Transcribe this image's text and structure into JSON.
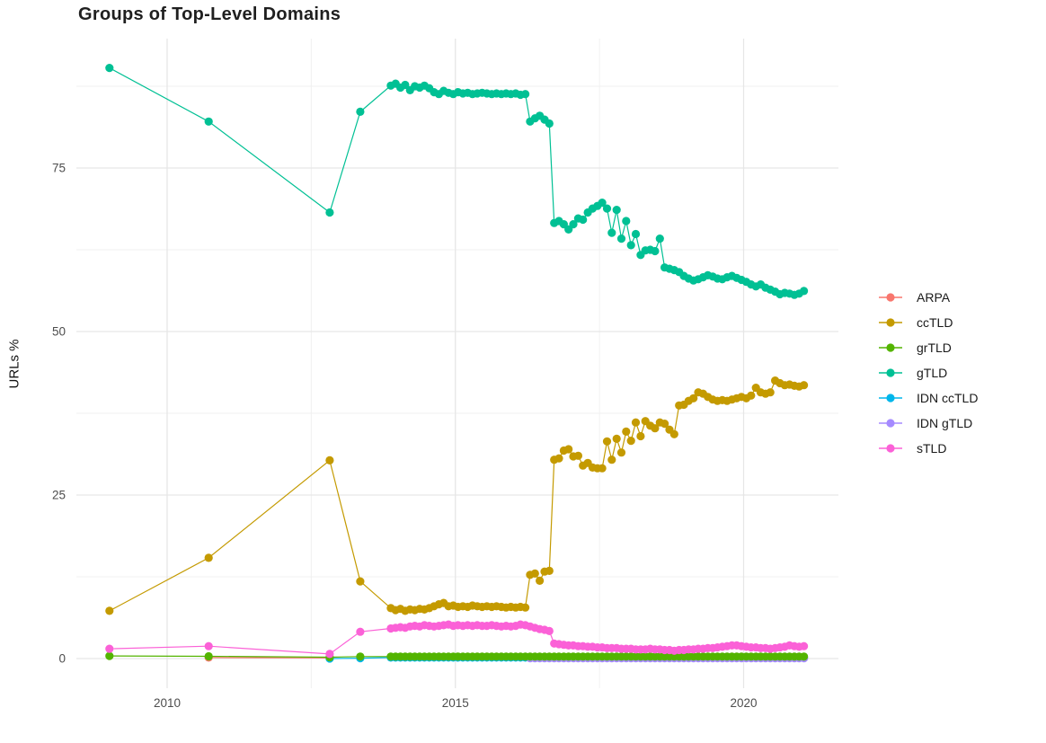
{
  "chart_data": {
    "type": "line",
    "title": "Groups of Top-Level Domains",
    "xlabel": "",
    "ylabel": "URLs %",
    "x_ticks": [
      2010,
      2015,
      2020
    ],
    "x_tick_labels": [
      "2010",
      "2015",
      "2020"
    ],
    "x_minor_ticks": [
      2012.5,
      2017.5
    ],
    "y_ticks": [
      0,
      25,
      50,
      75
    ],
    "y_tick_labels": [
      "0",
      "25",
      "50",
      "75"
    ],
    "y_minor_ticks": [
      12.5,
      37.5,
      62.5,
      87.5
    ],
    "xlim": [
      2008.4,
      2021.65
    ],
    "ylim": [
      -4.5,
      94.8
    ],
    "grid": true,
    "legend_position": "right",
    "point_radius_px": 4.6,
    "colors": {
      "ARPA": "#F8766D",
      "ccTLD": "#C49A00",
      "grTLD": "#53B400",
      "gTLD": "#00C094",
      "IDN ccTLD": "#00B6EB",
      "IDN gTLD": "#A58AFF",
      "sTLD": "#FB61D7"
    },
    "series": [
      {
        "name": "ARPA",
        "color": "#F8766D",
        "early": [
          [
            2010.72,
            0.15
          ],
          [
            2012.82,
            0.1
          ]
        ],
        "dense_start": null,
        "dense_step": null,
        "dense": []
      },
      {
        "name": "ccTLD",
        "color": "#C49A00",
        "early": [
          [
            2009.0,
            7.3
          ],
          [
            2010.72,
            15.4
          ],
          [
            2012.82,
            30.3
          ],
          [
            2013.35,
            11.8
          ]
        ],
        "dense_start": 2013.88,
        "dense_step": 0.083333,
        "dense": [
          7.7,
          7.4,
          7.6,
          7.3,
          7.5,
          7.4,
          7.6,
          7.5,
          7.7,
          8.0,
          8.3,
          8.5,
          8.0,
          8.1,
          7.9,
          8.0,
          7.9,
          8.1,
          8.0,
          7.9,
          8.0,
          7.9,
          8.0,
          7.9,
          7.8,
          7.9,
          7.8,
          7.9,
          7.8,
          12.8,
          13.0,
          11.9,
          13.3,
          13.4,
          30.4,
          30.6,
          31.8,
          32.0,
          30.9,
          31.0,
          29.5,
          29.9,
          29.2,
          29.1,
          29.1,
          33.2,
          30.4,
          33.6,
          31.5,
          34.7,
          33.3,
          36.1,
          34.0,
          36.3,
          35.6,
          35.2,
          36.1,
          35.9,
          35.0,
          34.3,
          38.7,
          38.8,
          39.4,
          39.8,
          40.7,
          40.5,
          40.0,
          39.6,
          39.4,
          39.5,
          39.4,
          39.6,
          39.8,
          40.0,
          39.8,
          40.2,
          41.4,
          40.7,
          40.5,
          40.7,
          42.5,
          42.1,
          41.8,
          41.9,
          41.7,
          41.6,
          41.8
        ]
      },
      {
        "name": "grTLD",
        "color": "#53B400",
        "early": [
          [
            2009.0,
            0.4
          ],
          [
            2010.72,
            0.35
          ],
          [
            2012.82,
            0.2
          ],
          [
            2013.35,
            0.3
          ]
        ],
        "dense_start": 2013.88,
        "dense_step": 0.083333,
        "dense": {
          "repeat": 0.3,
          "count": 87
        }
      },
      {
        "name": "gTLD",
        "color": "#00C094",
        "early": [
          [
            2009.0,
            90.3
          ],
          [
            2010.72,
            82.1
          ],
          [
            2012.82,
            68.2
          ],
          [
            2013.35,
            83.6
          ]
        ],
        "dense_start": 2013.88,
        "dense_step": 0.083333,
        "dense": [
          87.6,
          87.9,
          87.3,
          87.7,
          86.9,
          87.5,
          87.3,
          87.6,
          87.2,
          86.6,
          86.3,
          86.8,
          86.5,
          86.3,
          86.6,
          86.4,
          86.5,
          86.3,
          86.4,
          86.5,
          86.4,
          86.3,
          86.4,
          86.3,
          86.4,
          86.3,
          86.4,
          86.2,
          86.3,
          82.1,
          82.6,
          83.0,
          82.4,
          81.8,
          66.6,
          66.9,
          66.4,
          65.6,
          66.4,
          67.3,
          67.1,
          68.2,
          68.8,
          69.2,
          69.7,
          68.8,
          65.1,
          68.6,
          64.2,
          66.9,
          63.2,
          64.9,
          61.7,
          62.4,
          62.5,
          62.3,
          64.2,
          59.8,
          59.6,
          59.4,
          59.1,
          58.5,
          58.1,
          57.8,
          58.0,
          58.3,
          58.6,
          58.4,
          58.1,
          58.0,
          58.3,
          58.5,
          58.2,
          57.9,
          57.6,
          57.2,
          56.9,
          57.2,
          56.7,
          56.4,
          56.1,
          55.7,
          55.9,
          55.8,
          55.6,
          55.8,
          56.2
        ]
      },
      {
        "name": "IDN ccTLD",
        "color": "#00B6EB",
        "early": [
          [
            2012.82,
            0.0
          ],
          [
            2013.35,
            0.05
          ]
        ],
        "dense_start": 2013.88,
        "dense_step": 0.083333,
        "dense": {
          "repeat": 0.15,
          "count": 87
        }
      },
      {
        "name": "IDN gTLD",
        "color": "#A58AFF",
        "early": [],
        "dense_start": 2016.297,
        "dense_step": 0.083333,
        "dense": {
          "repeat": 0.05,
          "count": 58
        }
      },
      {
        "name": "sTLD",
        "color": "#FB61D7",
        "early": [
          [
            2009.0,
            1.5
          ],
          [
            2010.72,
            1.9
          ],
          [
            2012.82,
            0.7
          ],
          [
            2013.35,
            4.1
          ]
        ],
        "dense_start": 2013.88,
        "dense_step": 0.083333,
        "dense": [
          4.6,
          4.7,
          4.8,
          4.7,
          4.9,
          5.0,
          4.9,
          5.1,
          5.0,
          4.9,
          5.0,
          5.1,
          5.2,
          5.0,
          5.1,
          5.0,
          5.1,
          5.0,
          5.1,
          5.0,
          5.0,
          5.1,
          5.0,
          4.9,
          5.0,
          4.9,
          5.0,
          5.2,
          5.1,
          4.9,
          4.7,
          4.5,
          4.4,
          4.2,
          2.3,
          2.2,
          2.1,
          2.0,
          2.0,
          1.9,
          1.9,
          1.8,
          1.8,
          1.7,
          1.7,
          1.6,
          1.6,
          1.6,
          1.5,
          1.5,
          1.5,
          1.4,
          1.4,
          1.4,
          1.5,
          1.4,
          1.4,
          1.3,
          1.3,
          1.2,
          1.3,
          1.3,
          1.4,
          1.4,
          1.5,
          1.5,
          1.6,
          1.6,
          1.7,
          1.8,
          1.9,
          2.0,
          2.0,
          1.9,
          1.8,
          1.7,
          1.7,
          1.6,
          1.6,
          1.5,
          1.6,
          1.7,
          1.8,
          2.0,
          1.9,
          1.8,
          1.9
        ]
      }
    ]
  }
}
